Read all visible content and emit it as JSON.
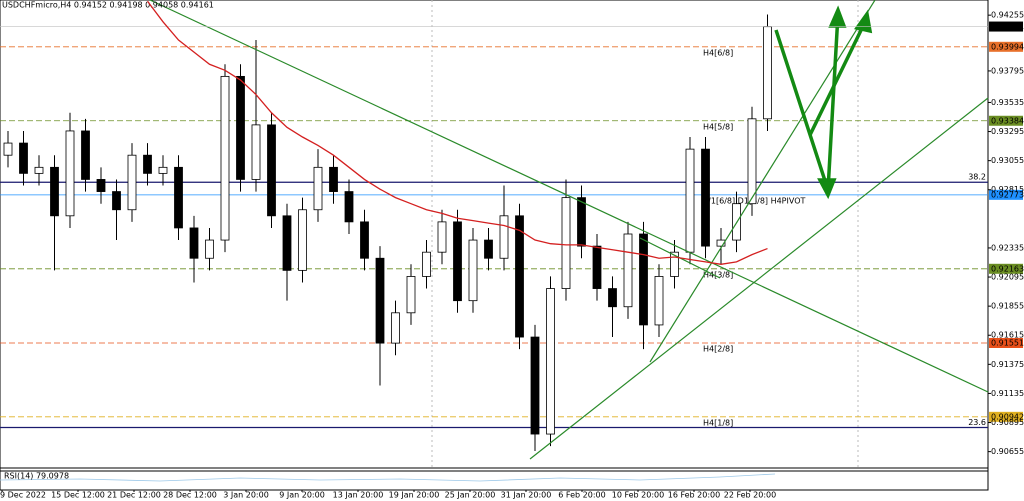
{
  "chart_data": {
    "type": "candlestick",
    "title": "USDCHFmicro,H4 0.94152 0.94198 0.94058 0.94161",
    "ylim": [
      0.9052,
      0.9438
    ],
    "yticks": [
      0.94255,
      0.93795,
      0.93535,
      0.93295,
      0.93055,
      0.92815,
      0.92335,
      0.92095,
      0.91855,
      0.91615,
      0.91375,
      0.91135,
      0.90895,
      0.90655
    ],
    "x_labels": [
      "9 Dec 2022",
      "15 Dec 12:00",
      "21 Dec 12:00",
      "28 Dec 12:00",
      "3 Jan 20:00",
      "9 Jan 20:00",
      "13 Jan 20:00",
      "19 Jan 20:00",
      "25 Jan 20:00",
      "31 Jan 20:00",
      "6 Feb 20:00",
      "10 Feb 20:00",
      "16 Feb 20:00",
      "22 Feb 20:00"
    ],
    "open": [
      0.931,
      0.932,
      0.9295,
      0.93,
      0.926,
      0.933,
      0.929,
      0.928,
      0.9265,
      0.931,
      0.9295,
      0.93,
      0.925,
      0.9225,
      0.924,
      0.9375,
      0.929,
      0.9335,
      0.926,
      0.9215,
      0.9265,
      0.93,
      0.928,
      0.9255,
      0.9225,
      0.9155,
      0.918,
      0.921,
      0.923,
      0.9255,
      0.919,
      0.924,
      0.9225,
      0.926,
      0.916,
      0.908,
      0.92,
      0.9275,
      0.9235,
      0.92,
      0.9185,
      0.9245,
      0.917,
      0.921,
      0.923,
      0.9315,
      0.9235,
      0.924,
      0.927,
      0.934
    ],
    "high": [
      0.933,
      0.933,
      0.931,
      0.931,
      0.9345,
      0.934,
      0.93,
      0.929,
      0.932,
      0.932,
      0.931,
      0.931,
      0.926,
      0.925,
      0.9385,
      0.9385,
      0.9405,
      0.9345,
      0.927,
      0.9275,
      0.9315,
      0.931,
      0.929,
      0.9265,
      0.9235,
      0.919,
      0.922,
      0.924,
      0.9265,
      0.9265,
      0.925,
      0.925,
      0.9285,
      0.927,
      0.917,
      0.921,
      0.929,
      0.9285,
      0.9245,
      0.921,
      0.9255,
      0.9255,
      0.922,
      0.924,
      0.9325,
      0.9325,
      0.925,
      0.928,
      0.935,
      0.9426
    ],
    "low": [
      0.93,
      0.9285,
      0.9285,
      0.9215,
      0.925,
      0.928,
      0.927,
      0.924,
      0.9255,
      0.9285,
      0.9285,
      0.924,
      0.9205,
      0.9215,
      0.923,
      0.928,
      0.928,
      0.925,
      0.919,
      0.9205,
      0.9255,
      0.927,
      0.9245,
      0.9215,
      0.912,
      0.9145,
      0.917,
      0.92,
      0.922,
      0.918,
      0.918,
      0.9215,
      0.9215,
      0.915,
      0.9066,
      0.907,
      0.919,
      0.9225,
      0.919,
      0.916,
      0.9175,
      0.915,
      0.916,
      0.92,
      0.922,
      0.9225,
      0.922,
      0.923,
      0.926,
      0.933
    ],
    "close": [
      0.932,
      0.9295,
      0.93,
      0.926,
      0.933,
      0.929,
      0.928,
      0.9265,
      0.931,
      0.9295,
      0.93,
      0.925,
      0.9225,
      0.924,
      0.9375,
      0.929,
      0.9335,
      0.926,
      0.9215,
      0.9265,
      0.93,
      0.928,
      0.9255,
      0.9225,
      0.9155,
      0.918,
      0.921,
      0.923,
      0.9255,
      0.919,
      0.924,
      0.9225,
      0.926,
      0.916,
      0.908,
      0.92,
      0.9275,
      0.9235,
      0.92,
      0.9185,
      0.9245,
      0.917,
      0.921,
      0.923,
      0.9315,
      0.9235,
      0.924,
      0.927,
      0.934,
      0.9416
    ],
    "ma": {
      "color": "#d42020",
      "values": [
        null,
        null,
        null,
        null,
        null,
        null,
        null,
        null,
        null,
        0.9437,
        0.942,
        0.9405,
        0.9395,
        0.9385,
        0.938,
        0.9372,
        0.936,
        0.9345,
        0.9333,
        0.9325,
        0.9318,
        0.931,
        0.93,
        0.929,
        0.9282,
        0.9275,
        0.927,
        0.9265,
        0.9262,
        0.9258,
        0.9256,
        0.9254,
        0.9252,
        0.9248,
        0.924,
        0.9237,
        0.9236,
        0.9236,
        0.9234,
        0.9232,
        0.923,
        0.9228,
        0.9225,
        0.9226,
        0.9224,
        0.9222,
        0.922,
        0.9222,
        0.9228,
        0.9233
      ]
    },
    "levels": [
      {
        "label": "H4[6/8]",
        "value": 0.93994,
        "color": "#e8702a"
      },
      {
        "label": "H4[5/8]",
        "value": 0.93384,
        "color": "#6b8e23"
      },
      {
        "label": "W1[6/8] D1[6/8] H4PIVOT",
        "value": 0.92773,
        "color": "#1e90ff"
      },
      {
        "label": "H4[3/8]",
        "value": 0.92163,
        "color": "#6b8e23"
      },
      {
        "label": "H4[2/8]",
        "value": 0.91551,
        "color": "#e8501a"
      },
      {
        "label": "H4[1/8]",
        "value": 0.90942,
        "color": "#e0b020"
      }
    ],
    "fib_levels": [
      {
        "label": "38.2",
        "value": 0.92877,
        "color": "#1a1a6e"
      },
      {
        "label": "23.6",
        "value": 0.90854,
        "color": "#1a1a6e"
      }
    ],
    "last_price": 0.94161,
    "rsi_label": "RSI(14) 79.0978"
  }
}
